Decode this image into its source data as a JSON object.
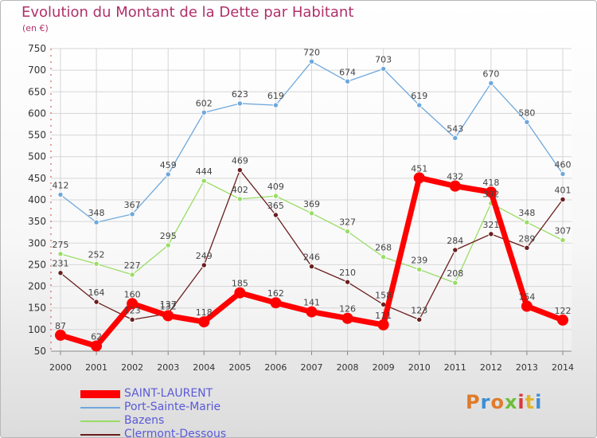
{
  "header": {
    "title": "Evolution du Montant de la Dette par Habitant",
    "unit": "(en €)"
  },
  "chart_data": {
    "type": "line",
    "title": "Evolution du Montant de la Dette par Habitant",
    "subtitle": "(en €)",
    "xlabel": "",
    "ylabel": "",
    "x": [
      "2000",
      "2001",
      "2002",
      "2003",
      "2004",
      "2005",
      "2006",
      "2007",
      "2008",
      "2009",
      "2010",
      "2011",
      "2012",
      "2013",
      "2014"
    ],
    "ylim": [
      50,
      750
    ],
    "yticks": [
      50,
      100,
      150,
      200,
      250,
      300,
      350,
      400,
      450,
      500,
      550,
      600,
      650,
      700,
      750
    ],
    "grid": true,
    "legend_position": "bottom-left",
    "series": [
      {
        "name": "SAINT-LAURENT",
        "color": "#ff0000",
        "values": [
          87,
          62,
          160,
          132,
          118,
          185,
          162,
          141,
          126,
          111,
          451,
          432,
          418,
          154,
          122
        ]
      },
      {
        "name": "Port-Sainte-Marie",
        "color": "#6fa8dc",
        "values": [
          412,
          348,
          367,
          459,
          602,
          623,
          619,
          720,
          674,
          703,
          619,
          543,
          670,
          580,
          460
        ]
      },
      {
        "name": "Bazens",
        "color": "#99dd66",
        "values": [
          275,
          252,
          227,
          295,
          444,
          402,
          409,
          369,
          327,
          268,
          239,
          208,
          392,
          348,
          307
        ]
      },
      {
        "name": "Clermont-Dessous",
        "color": "#6b1e1e",
        "values": [
          231,
          164,
          123,
          137,
          249,
          469,
          365,
          246,
          210,
          158,
          123,
          284,
          321,
          289,
          401
        ]
      }
    ]
  },
  "branding": {
    "logo_text": "Proxiti",
    "logo_colors": [
      "#e07b2a",
      "#3b8fd6",
      "#e07b2a",
      "#6dbf3a",
      "#d93a3a",
      "#e0b52a",
      "#3b8fd6"
    ]
  }
}
